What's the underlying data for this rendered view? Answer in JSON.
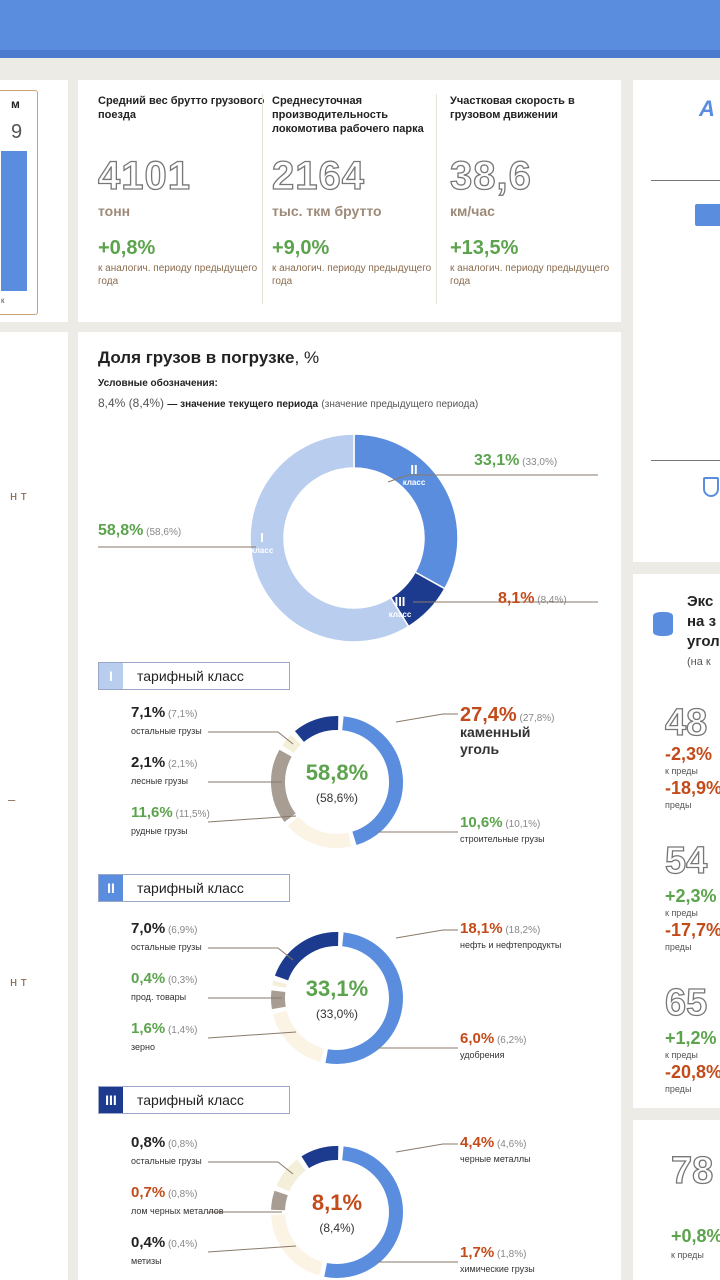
{
  "header": {
    "color": "#5b8ddf"
  },
  "left_fragments": {
    "top_t1": "м",
    "top_t2": "9",
    "top_t3": "к",
    "frag_a": "н т",
    "frag_b": "–",
    "frag_c": "н т"
  },
  "stats": [
    {
      "label": "Средний вес брутто грузового поезда",
      "value": "4101",
      "unit": "тонн",
      "change": "+0,8%",
      "note": "к аналогич. периоду предыдущего года"
    },
    {
      "label": "Среднесуточная производительность локомотива рабочего парка",
      "value": "2164",
      "unit": "тыс. ткм брутто",
      "change": "+9,0%",
      "note": "к аналогич. периоду предыдущего года"
    },
    {
      "label": "Участковая скорость в грузовом движении",
      "value": "38,6",
      "unit": "км/час",
      "change": "+13,5%",
      "note": "к аналогич. периоду предыдущего года"
    }
  ],
  "main": {
    "title": "Доля грузов в погрузке",
    "title_unit": ", %",
    "legend_heading": "Условные обозначения:",
    "legend_example": "8,4% (8,4%)",
    "legend_text": "— значение текущего периода",
    "legend_paren": "(значение предыдущего периода)"
  },
  "chart_data": [
    {
      "type": "pie",
      "title": "Доля грузов в погрузке, %",
      "categories": [
        "I класс",
        "II класс",
        "III класс"
      ],
      "series": [
        {
          "name": "текущий период",
          "values": [
            58.8,
            33.1,
            8.1
          ]
        },
        {
          "name": "предыдущий период",
          "values": [
            58.6,
            33.0,
            8.4
          ]
        }
      ],
      "value_labels": [
        "58,8% (58,6%)",
        "33,1% (33,0%)",
        "8,1% (8,4%)"
      ],
      "segment_labels": [
        "I",
        "II",
        "III"
      ],
      "segment_sublabel": "класс",
      "colors": [
        "#b9cdef",
        "#5b8ddf",
        "#1c3a8e"
      ]
    },
    {
      "type": "pie",
      "title": "тарифный класс I",
      "class_number": "I",
      "center_value": "58,8%",
      "center_prev": "(58,6%)",
      "categories": [
        "каменный уголь",
        "строительные грузы",
        "рудные грузы",
        "лесные грузы",
        "остальные грузы"
      ],
      "values": [
        27.4,
        10.6,
        11.6,
        2.1,
        7.1
      ],
      "previous": [
        27.8,
        10.1,
        11.5,
        2.1,
        7.1
      ],
      "labels_current": [
        "27,4%",
        "10,6%",
        "11,6%",
        "2,1%",
        "7,1%"
      ],
      "labels_prev": [
        "(27,8%)",
        "(10,1%)",
        "(11,5%)",
        "(2,1%)",
        "(7,1%)"
      ],
      "colors": [
        "#5b8ddf",
        "#fbf3e4",
        "#a79d93",
        "#f3efd9",
        "#1c3a8e"
      ]
    },
    {
      "type": "pie",
      "title": "тарифный класс II",
      "class_number": "II",
      "center_value": "33,1%",
      "center_prev": "(33,0%)",
      "categories": [
        "нефть и нефтепродукты",
        "удобрения",
        "зерно",
        "прод. товары",
        "остальные грузы"
      ],
      "values": [
        18.1,
        6.0,
        1.6,
        0.4,
        7.0
      ],
      "previous": [
        18.2,
        6.2,
        1.4,
        0.3,
        6.9
      ],
      "labels_current": [
        "18,1%",
        "6,0%",
        "1,6%",
        "0,4%",
        "7,0%"
      ],
      "labels_prev": [
        "(18,2%)",
        "(6,2%)",
        "(1,4%)",
        "(0,3%)",
        "(6,9%)"
      ],
      "colors": [
        "#5b8ddf",
        "#fbf3e4",
        "#a79d93",
        "#f3efd9",
        "#1c3a8e"
      ]
    },
    {
      "type": "pie",
      "title": "тарифный класс III",
      "class_number": "III",
      "center_value": "8,1%",
      "center_prev": "(8,4%)",
      "categories": [
        "черные металлы",
        "химические грузы",
        "метизы",
        "лом черных металлов",
        "остальные грузы"
      ],
      "values": [
        4.4,
        1.7,
        0.4,
        0.7,
        0.8
      ],
      "previous": [
        4.6,
        1.8,
        0.4,
        0.8,
        0.8
      ],
      "labels_current": [
        "4,4%",
        "1,7%",
        "0,4%",
        "0,7%",
        "0,8%"
      ],
      "labels_prev": [
        "(4,6%)",
        "(1,8%)",
        "(0,4%)",
        "(0,8%)",
        "(0,8%)"
      ],
      "colors": [
        "#5b8ddf",
        "#fbf3e4",
        "#a79d93",
        "#f3efd9",
        "#1c3a8e"
      ]
    }
  ],
  "class_box_text": "тарифный класс",
  "right_panel": {
    "frag_title1": "Экс",
    "frag_title2": "на з",
    "frag_title3": "угол",
    "frag_sub": "(на к",
    "frag_v1": "48",
    "frag_c1a": "-2,3%",
    "frag_n1a": "к преды",
    "frag_c1b": "-18,9%",
    "frag_n1b": "преды",
    "frag_v2": "54",
    "frag_c2a": "+2,3%",
    "frag_n2a": "к преды",
    "frag_c2b": "-17,7%",
    "frag_n2b": "преды",
    "frag_v3": "65",
    "frag_c3a": "+1,2%",
    "frag_n3a": "к преды",
    "frag_c3b": "-20,8%",
    "frag_n3b": "преды",
    "frag_v4": "78",
    "frag_c4": "+0,8%",
    "frag_n4": "к преды"
  }
}
